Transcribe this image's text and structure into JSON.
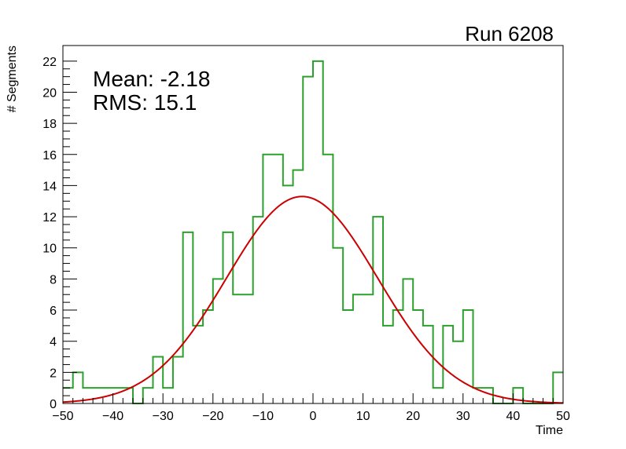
{
  "chart_data": {
    "type": "histogram",
    "run_label": "Run 6208",
    "xlabel": "Time",
    "ylabel": "# Segments",
    "xlim": [
      -50,
      50
    ],
    "ylim": [
      0,
      23
    ],
    "x_ticks": [
      -50,
      -40,
      -30,
      -20,
      -10,
      0,
      10,
      20,
      30,
      40,
      50
    ],
    "y_ticks": [
      0,
      2,
      4,
      6,
      8,
      10,
      12,
      14,
      16,
      18,
      20,
      22
    ],
    "x_tick_labels": [
      "−50",
      "−40",
      "−30",
      "−20",
      "−10",
      "0",
      "10",
      "20",
      "30",
      "40",
      "50"
    ],
    "y_tick_labels": [
      "0",
      "2",
      "4",
      "6",
      "8",
      "10",
      "12",
      "14",
      "16",
      "18",
      "20",
      "22"
    ],
    "stats": {
      "mean": "Mean: -2.18",
      "rms": "RMS:  15.1"
    },
    "bin_width": 2,
    "bin_start": -50,
    "bin_counts": [
      1,
      2,
      1,
      1,
      1,
      1,
      1,
      0,
      1,
      3,
      1,
      3,
      11,
      5,
      6,
      8,
      11,
      7,
      7,
      12,
      16,
      16,
      14,
      15,
      21,
      22,
      16,
      10,
      6,
      7,
      7,
      12,
      5,
      6,
      8,
      6,
      5,
      1,
      5,
      4,
      6,
      1,
      1,
      0,
      0,
      1,
      0,
      0,
      0,
      2
    ],
    "histogram_color": "#2ca02c",
    "fit": {
      "type": "gaussian",
      "amplitude": 13.3,
      "mean": -2.18,
      "sigma": 15.1,
      "color": "#cc0000"
    }
  }
}
